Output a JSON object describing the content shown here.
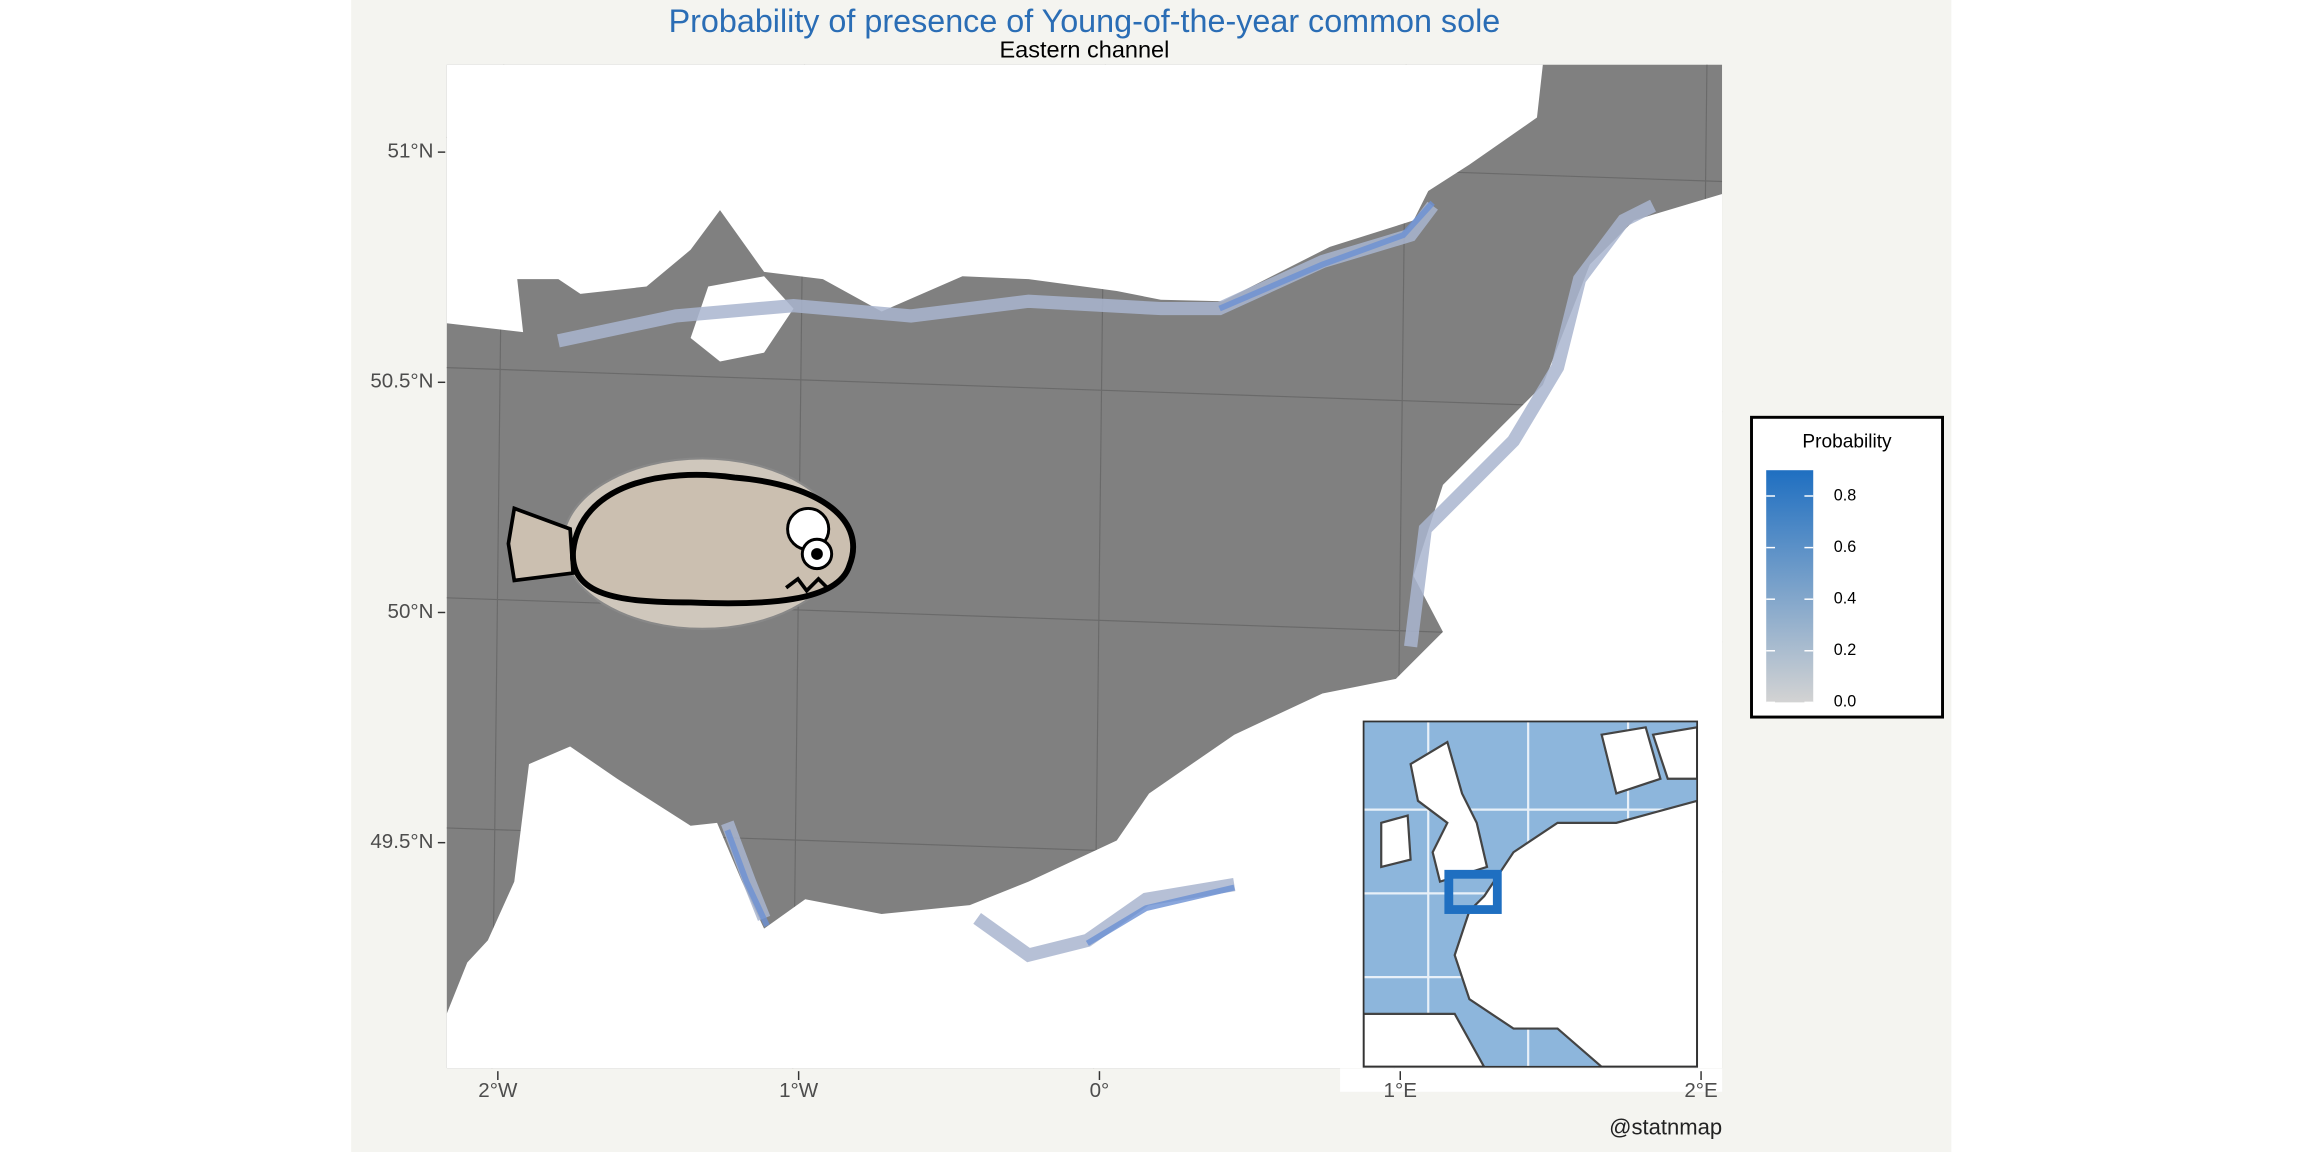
{
  "map": {
    "type": "map",
    "title": "Probability of presence of Young-of-the-year common sole",
    "subtitle": "Eastern channel",
    "caption": "@statnmap",
    "xlim": [
      -2.17,
      2.07
    ],
    "ylim": [
      49.01,
      51.19
    ],
    "xticks": [
      {
        "value": -2,
        "label": "2°W"
      },
      {
        "value": -1,
        "label": "1°W"
      },
      {
        "value": 0,
        "label": "0°"
      },
      {
        "value": 1,
        "label": "1°E"
      },
      {
        "value": 2,
        "label": "2°E"
      }
    ],
    "yticks": [
      {
        "value": 49.5,
        "label": "49.5°N"
      },
      {
        "value": 50,
        "label": "50°N"
      },
      {
        "value": 50.5,
        "label": "50.5°N"
      },
      {
        "value": 51,
        "label": "51°N"
      }
    ],
    "legend": {
      "title": "Probability",
      "limits": [
        0,
        0.9
      ],
      "low_color": "#d3d3d3",
      "high_color": "#1f6fc1",
      "ticks": [
        {
          "value": 0,
          "label": "0.0"
        },
        0.2,
        0.4,
        0.6,
        0.8
      ]
    }
  }
}
